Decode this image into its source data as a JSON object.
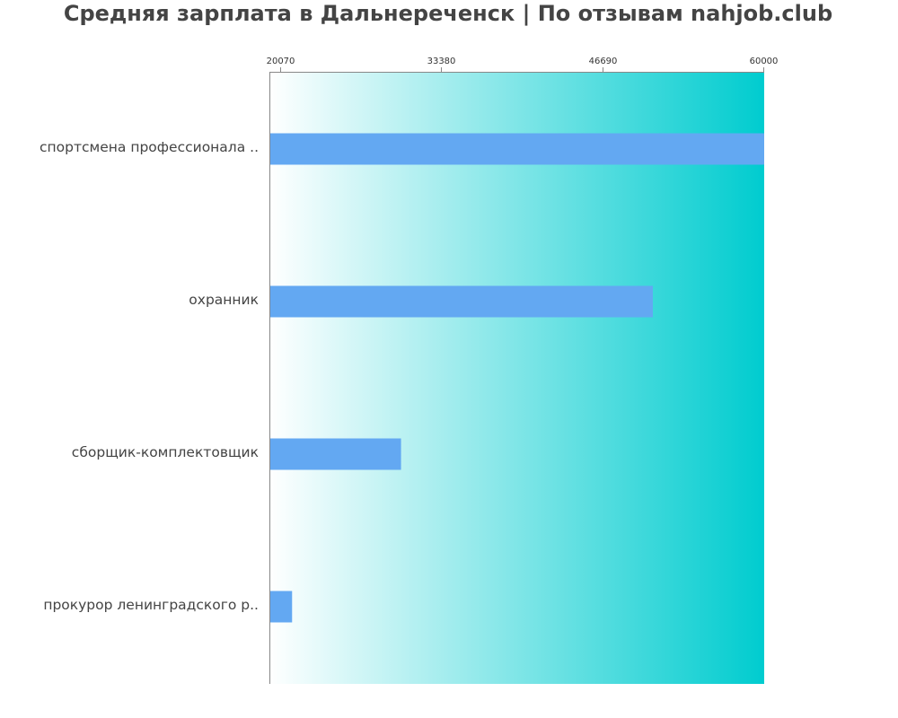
{
  "chart_data": {
    "type": "bar",
    "orientation": "horizontal",
    "title": "Средняя зарплата в Дальнереченск | По отзывам nahjob.club",
    "categories": [
      "спортсмена профессионала ..",
      "охранник",
      "сборщик-комплектовщик",
      "прокурор ленинградского р.."
    ],
    "values": [
      60000,
      50800,
      30000,
      21000
    ],
    "xlim": [
      19200,
      60000
    ],
    "xticks": [
      20070,
      33380,
      46690,
      60000
    ],
    "xtick_labels": [
      "20070",
      "33380",
      "46690",
      "60000"
    ],
    "xaxis_position": "top",
    "grid": false,
    "legend": "none",
    "colors": {
      "bar": "#63a8f2",
      "background_start": "#ffffff",
      "background_end": "#00cccf",
      "axis": "#888888",
      "title": "#444444"
    }
  }
}
